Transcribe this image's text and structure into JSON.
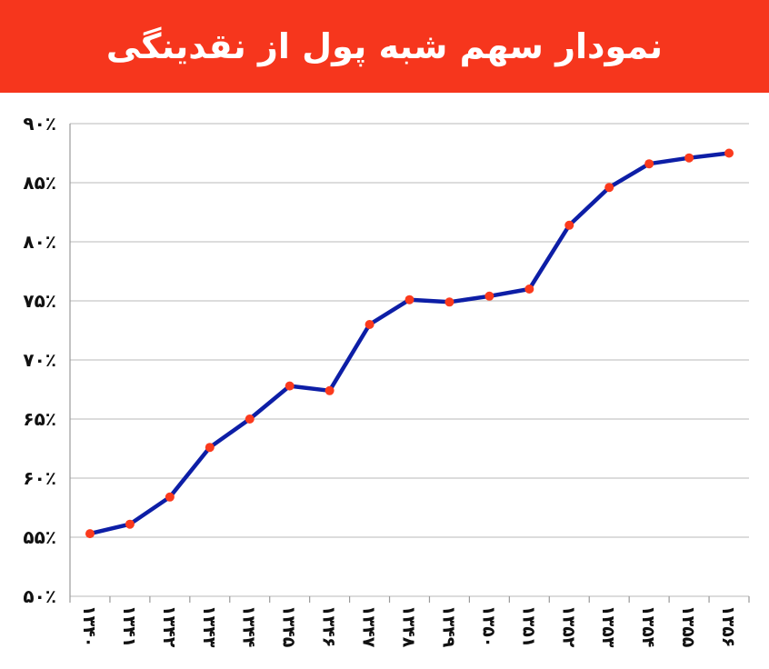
{
  "header": {
    "title": "نمودار سهم شبه پول از نقدینگی"
  },
  "colors": {
    "header_bg": "#f6361d",
    "line": "#0d1ea6",
    "marker": "#fb3a1d",
    "grid": "#c8c8c8"
  },
  "chart_data": {
    "type": "line",
    "title": "",
    "xlabel": "",
    "ylabel": "",
    "categories": [
      "۱۳۴۰",
      "۱۳۴۱",
      "۱۳۴۲",
      "۱۳۴۳",
      "۱۳۴۴",
      "۱۳۴۵",
      "۱۳۴۶",
      "۱۳۴۷",
      "۱۳۴۸",
      "۱۳۴۹",
      "۱۳۵۰",
      "۱۳۵۱",
      "۱۳۵۲",
      "۱۳۵۳",
      "۱۳۵۴",
      "۱۳۵۵",
      "۱۳۵۶"
    ],
    "series": [
      {
        "values": [
          55.3,
          56.1,
          58.4,
          62.6,
          65.0,
          67.8,
          67.4,
          73.0,
          75.1,
          74.9,
          75.4,
          76.0,
          81.4,
          84.6,
          86.6,
          87.1,
          87.5
        ]
      }
    ],
    "yticks": [
      "۹۰٪",
      "۸۵٪",
      "۸۰٪",
      "۷۵٪",
      "۷۰٪",
      "۶۵٪",
      "۶۰٪",
      "۵۵٪",
      "۵۰٪"
    ],
    "ytick_values": [
      90,
      85,
      80,
      75,
      70,
      65,
      60,
      55,
      50
    ],
    "ylim": [
      50,
      90
    ],
    "grid": true,
    "legend": "none"
  }
}
